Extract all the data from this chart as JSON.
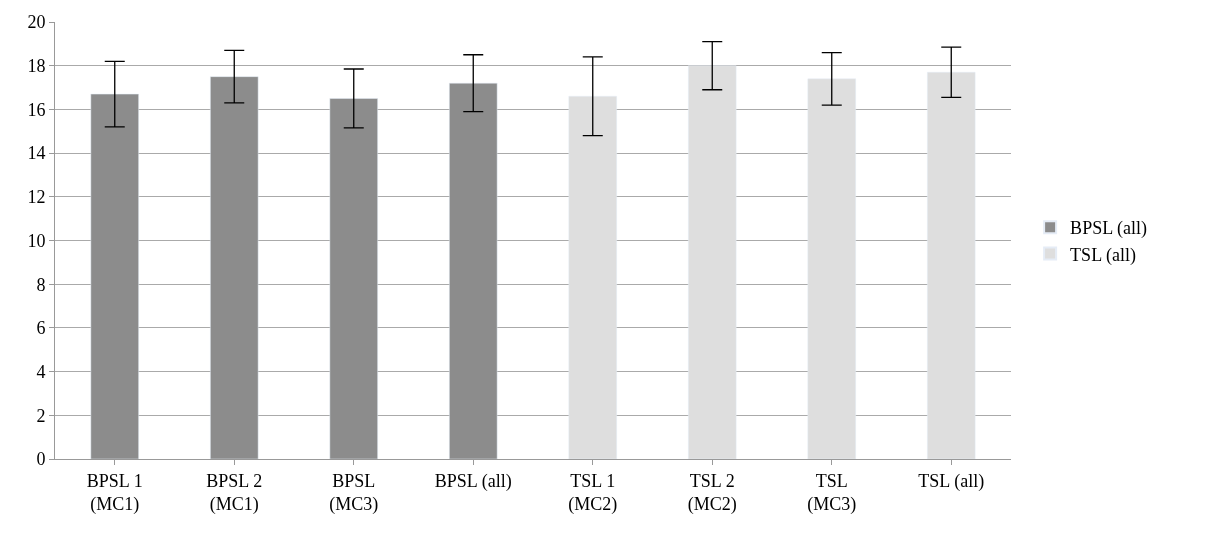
{
  "chart_data": {
    "type": "bar",
    "categories": [
      "BPSL 1\n(MC1)",
      "BPSL 2\n(MC1)",
      "BPSL\n(MC3)",
      "BPSL (all)",
      "TSL 1\n(MC2)",
      "TSL 2\n(MC2)",
      "TSL\n(MC3)",
      "TSL (all)"
    ],
    "series": [
      {
        "name": "BPSL (all)",
        "color": "#8c8c8c",
        "values": [
          16.7,
          17.5,
          16.5,
          17.2,
          null,
          null,
          null,
          null
        ],
        "errors": [
          1.5,
          1.2,
          1.35,
          1.3,
          null,
          null,
          null,
          null
        ]
      },
      {
        "name": "TSL (all)",
        "color": "#dedede",
        "values": [
          null,
          null,
          null,
          null,
          16.6,
          18.0,
          17.4,
          17.7
        ],
        "errors": [
          null,
          null,
          null,
          null,
          1.8,
          1.1,
          1.2,
          1.15
        ]
      }
    ],
    "ylim": [
      0,
      20
    ],
    "yticks": [
      0,
      2,
      4,
      6,
      8,
      10,
      12,
      14,
      16,
      18,
      20
    ],
    "grid": "y",
    "legend": "right"
  }
}
